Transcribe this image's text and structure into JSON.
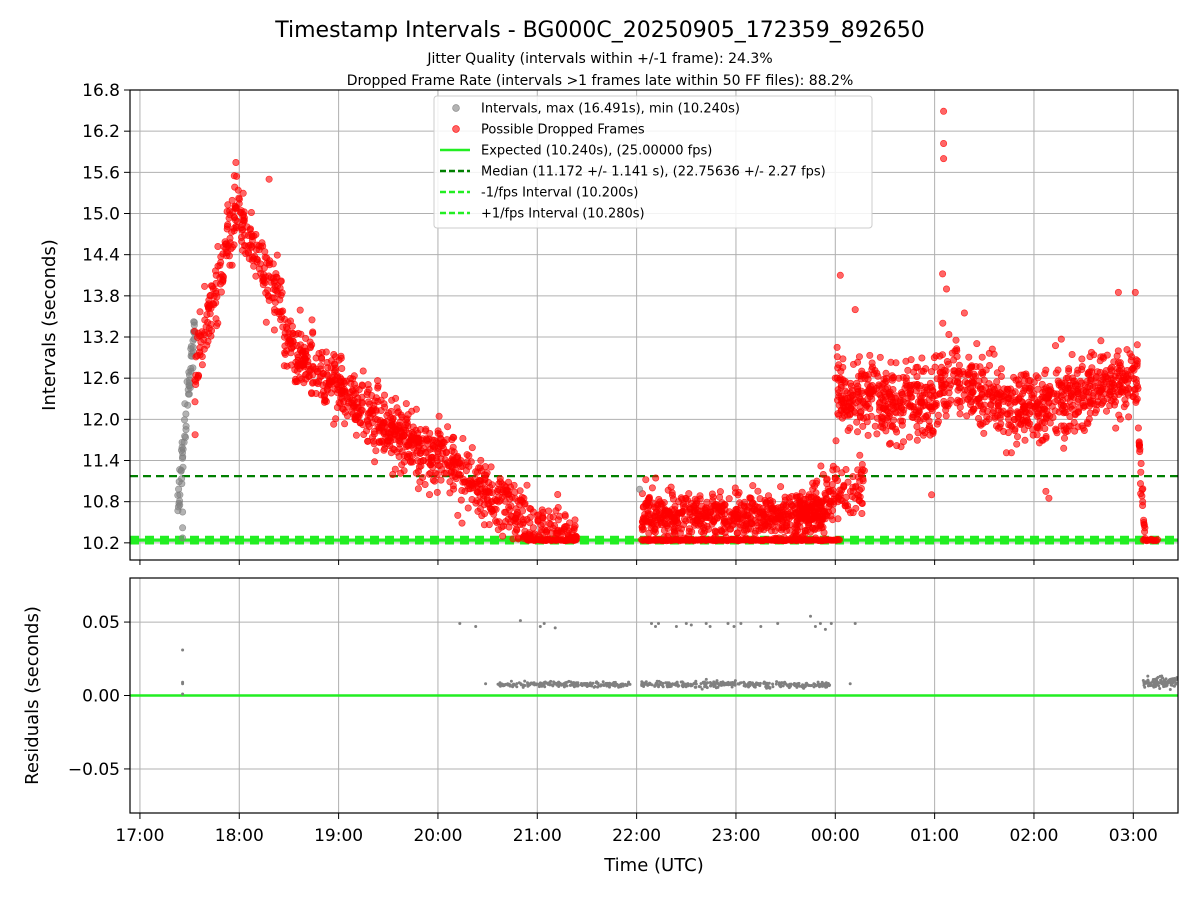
{
  "title": "Timestamp Intervals - BG000C_20250905_172359_892650",
  "subtitle_1": "Jitter Quality (intervals within +/-1 frame): 24.3%",
  "subtitle_2": "Dropped Frame Rate (intervals >1 frames late within 50 FF files): 88.2%",
  "colors": {
    "gray": "#808080",
    "red": "#ff0000",
    "lime": "#22ee22",
    "dark_green": "#007f00",
    "grid": "#b0b0b0"
  },
  "chart_data": [
    {
      "type": "scatter",
      "name": "intervals",
      "ylabel": "Intervals (seconds)",
      "xlim_hours": [
        16.9,
        27.45
      ],
      "ylim": [
        9.95,
        16.8
      ],
      "yticks": [
        10.2,
        10.8,
        11.4,
        12.0,
        12.6,
        13.2,
        13.8,
        14.4,
        15.0,
        15.6,
        16.2,
        16.8
      ],
      "ytick_labels": [
        "10.2",
        "10.8",
        "11.4",
        "12.0",
        "12.6",
        "13.2",
        "13.8",
        "14.4",
        "15.0",
        "15.6",
        "16.2",
        "16.8"
      ],
      "grid": true,
      "legend_position": "upper-center",
      "legend": [
        {
          "label": "Intervals, max (16.491s), min (10.240s)",
          "kind": "dot",
          "color": "gray"
        },
        {
          "label": "Possible Dropped Frames",
          "kind": "dot",
          "color": "red"
        },
        {
          "label": "Expected (10.240s), (25.00000 fps)",
          "kind": "line",
          "color": "lime",
          "dash": "solid"
        },
        {
          "label": "Median (11.172 +/- 1.141 s), (22.75636 +/- 2.27 fps)",
          "kind": "line",
          "color": "dark_green",
          "dash": "dashed"
        },
        {
          "label": "-1/fps Interval (10.200s)",
          "kind": "line",
          "color": "lime",
          "dash": "dashed"
        },
        {
          "label": "+1/fps Interval (10.280s)",
          "kind": "line",
          "color": "lime",
          "dash": "dashed"
        }
      ],
      "reference_lines": [
        {
          "name": "expected",
          "y": 10.24,
          "color": "lime",
          "dash": "solid"
        },
        {
          "name": "minus-fps",
          "y": 10.2,
          "color": "lime",
          "dash": "dashed"
        },
        {
          "name": "plus-fps",
          "y": 10.28,
          "color": "lime",
          "dash": "dashed"
        },
        {
          "name": "median",
          "y": 11.172,
          "color": "dark_green",
          "dash": "dashed"
        }
      ],
      "stats": {
        "max": 16.491,
        "min": 10.24,
        "expected": 10.24,
        "median": 11.172,
        "median_sd": 1.141,
        "fps": 25.0
      },
      "segments": [
        {
          "t0": 17.38,
          "t1": 17.55,
          "profile": "rise",
          "y_start": 10.5,
          "y_end": 13.4,
          "spread": 0.35,
          "n": 60,
          "color": "gray"
        },
        {
          "t0": 17.55,
          "t1": 18.0,
          "profile": "rise",
          "y_start": 12.6,
          "y_end": 15.2,
          "spread": 0.5,
          "n": 130,
          "color": "red"
        },
        {
          "t0": 18.0,
          "t1": 18.45,
          "profile": "fall",
          "y_start": 15.0,
          "y_end": 13.6,
          "spread": 0.45,
          "n": 120,
          "color": "red"
        },
        {
          "t0": 18.45,
          "t1": 20.0,
          "profile": "fall",
          "y_start": 13.2,
          "y_end": 11.4,
          "spread": 0.45,
          "n": 520,
          "color": "red"
        },
        {
          "t0": 20.0,
          "t1": 20.9,
          "profile": "fall",
          "y_start": 11.6,
          "y_end": 10.5,
          "spread": 0.45,
          "n": 260,
          "color": "red"
        },
        {
          "t0": 20.9,
          "t1": 21.4,
          "profile": "flat",
          "y_start": 10.5,
          "y_end": 10.3,
          "spread": 0.3,
          "n": 90,
          "color": "red"
        },
        {
          "t0": 22.05,
          "t1": 23.9,
          "profile": "flat",
          "y_start": 10.6,
          "y_end": 10.6,
          "spread": 0.32,
          "n": 620,
          "color": "red"
        },
        {
          "t0": 23.6,
          "t1": 24.3,
          "profile": "rise",
          "y_start": 10.6,
          "y_end": 11.0,
          "spread": 0.4,
          "n": 160,
          "color": "red"
        },
        {
          "t0": 24.0,
          "t1": 25.05,
          "profile": "flat",
          "y_start": 12.4,
          "y_end": 12.2,
          "spread": 0.55,
          "n": 360,
          "color": "red"
        },
        {
          "t0": 25.05,
          "t1": 26.1,
          "profile": "flat",
          "y_start": 12.6,
          "y_end": 12.1,
          "spread": 0.55,
          "n": 340,
          "color": "red"
        },
        {
          "t0": 26.1,
          "t1": 27.05,
          "profile": "flat",
          "y_start": 12.2,
          "y_end": 12.6,
          "spread": 0.5,
          "n": 320,
          "color": "red"
        },
        {
          "t0": 27.05,
          "t1": 27.12,
          "profile": "fall",
          "y_start": 12.0,
          "y_end": 10.3,
          "spread": 0.2,
          "n": 25,
          "color": "red"
        }
      ],
      "outliers": [
        {
          "t": 17.43,
          "y": 10.65,
          "color": "gray"
        },
        {
          "t": 17.43,
          "y": 10.42,
          "color": "gray"
        },
        {
          "t": 17.43,
          "y": 10.27,
          "color": "gray"
        },
        {
          "t": 22.03,
          "y": 10.98,
          "color": "gray"
        },
        {
          "t": 25.09,
          "y": 16.49,
          "color": "red"
        },
        {
          "t": 25.09,
          "y": 16.02,
          "color": "red"
        },
        {
          "t": 25.09,
          "y": 15.8,
          "color": "red"
        },
        {
          "t": 24.05,
          "y": 14.1,
          "color": "red"
        },
        {
          "t": 25.08,
          "y": 14.12,
          "color": "red"
        },
        {
          "t": 25.12,
          "y": 13.9,
          "color": "red"
        },
        {
          "t": 26.85,
          "y": 13.85,
          "color": "red"
        },
        {
          "t": 27.02,
          "y": 13.85,
          "color": "red"
        },
        {
          "t": 24.2,
          "y": 13.6,
          "color": "red"
        },
        {
          "t": 25.3,
          "y": 13.55,
          "color": "red"
        },
        {
          "t": 24.97,
          "y": 10.9,
          "color": "red"
        },
        {
          "t": 26.12,
          "y": 10.95,
          "color": "red"
        },
        {
          "t": 26.15,
          "y": 10.85,
          "color": "red"
        },
        {
          "t": 20.2,
          "y": 10.6,
          "color": "red"
        },
        {
          "t": 17.95,
          "y": 15.55,
          "color": "red"
        },
        {
          "t": 18.3,
          "y": 15.5,
          "color": "red"
        }
      ],
      "baseline_runs": [
        {
          "t0": 20.9,
          "t1": 21.4,
          "y": 10.24,
          "color": "red"
        },
        {
          "t0": 22.05,
          "t1": 24.05,
          "y": 10.24,
          "color": "red"
        },
        {
          "t0": 27.1,
          "t1": 27.25,
          "y": 10.24,
          "color": "red"
        }
      ]
    },
    {
      "type": "scatter",
      "name": "residuals",
      "xlabel": "Time (UTC)",
      "ylabel": "Residuals (seconds)",
      "xlim_hours": [
        16.9,
        27.45
      ],
      "ylim": [
        -0.08,
        0.08
      ],
      "yticks": [
        -0.05,
        0.0,
        0.05
      ],
      "ytick_labels": [
        "−0.05",
        "0.00",
        "0.05"
      ],
      "xticks_hours": [
        17,
        18,
        19,
        20,
        21,
        22,
        23,
        24,
        25,
        26,
        27
      ],
      "xtick_labels": [
        "17:00",
        "18:00",
        "19:00",
        "20:00",
        "21:00",
        "22:00",
        "23:00",
        "00:00",
        "01:00",
        "02:00",
        "03:00"
      ],
      "grid": true,
      "zero_line": {
        "y": 0.0,
        "color": "lime"
      },
      "bands": [
        {
          "t0": 20.6,
          "t1": 21.95,
          "y": 0.0075,
          "spread": 0.0015,
          "n": 220,
          "color": "gray"
        },
        {
          "t0": 22.05,
          "t1": 23.95,
          "y": 0.0075,
          "spread": 0.0018,
          "n": 320,
          "color": "gray"
        },
        {
          "t0": 27.1,
          "t1": 27.45,
          "y": 0.009,
          "spread": 0.003,
          "n": 90,
          "color": "gray"
        }
      ],
      "points": [
        {
          "t": 17.43,
          "y": 0.031
        },
        {
          "t": 17.43,
          "y": 0.009
        },
        {
          "t": 17.43,
          "y": 0.008
        },
        {
          "t": 17.43,
          "y": 0.001
        },
        {
          "t": 20.22,
          "y": 0.049
        },
        {
          "t": 20.38,
          "y": 0.047
        },
        {
          "t": 20.48,
          "y": 0.008
        },
        {
          "t": 20.83,
          "y": 0.051
        },
        {
          "t": 21.03,
          "y": 0.047
        },
        {
          "t": 21.07,
          "y": 0.049
        },
        {
          "t": 21.18,
          "y": 0.046
        },
        {
          "t": 22.15,
          "y": 0.049
        },
        {
          "t": 22.19,
          "y": 0.047
        },
        {
          "t": 22.22,
          "y": 0.049
        },
        {
          "t": 22.4,
          "y": 0.047
        },
        {
          "t": 22.5,
          "y": 0.049
        },
        {
          "t": 22.55,
          "y": 0.048
        },
        {
          "t": 22.7,
          "y": 0.049
        },
        {
          "t": 22.74,
          "y": 0.047
        },
        {
          "t": 22.92,
          "y": 0.049
        },
        {
          "t": 22.98,
          "y": 0.047
        },
        {
          "t": 23.05,
          "y": 0.049
        },
        {
          "t": 23.25,
          "y": 0.047
        },
        {
          "t": 23.42,
          "y": 0.049
        },
        {
          "t": 23.75,
          "y": 0.054
        },
        {
          "t": 23.8,
          "y": 0.047
        },
        {
          "t": 23.85,
          "y": 0.049
        },
        {
          "t": 23.9,
          "y": 0.045
        },
        {
          "t": 23.96,
          "y": 0.049
        },
        {
          "t": 24.2,
          "y": 0.049
        },
        {
          "t": 24.15,
          "y": 0.008
        }
      ]
    }
  ]
}
